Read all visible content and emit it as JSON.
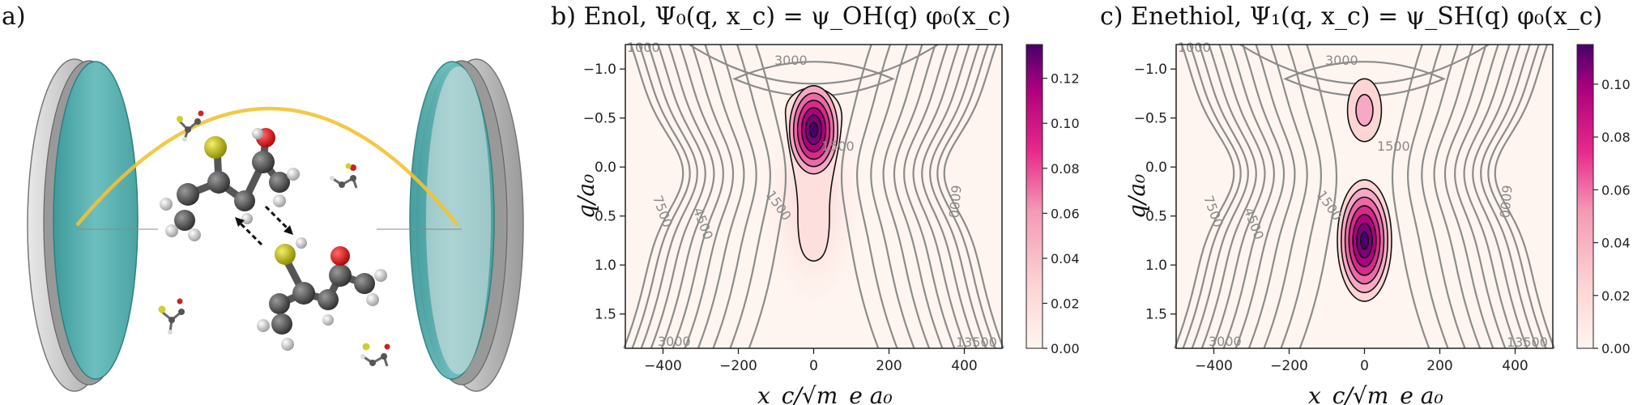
{
  "figure": {
    "panel_a_label": "a)",
    "panel_b_title": "b) Enol, Ψ₀(q, x_c) = ψ_OH(q) φ₀(x_c)",
    "panel_c_title": "c) Enethiol, Ψ₁(q, x_c) = ψ_SH(q) φ₀(x_c)"
  },
  "colors": {
    "mirror_teal": "#5fb3b3",
    "mirror_gray": "#c8c8c8",
    "photon_arc": "#f2c232",
    "contour_gray": "#8c8c8c",
    "cmap_low": "#fff5f0",
    "cmap_mid": "#e7298a",
    "cmap_high": "#49006a"
  },
  "chart_data": [
    {
      "type": "heatmap",
      "title": "Enol, Ψ₀(q, x_c) = ψ_OH(q) φ₀(x_c)",
      "xlabel": "x_c/√m_e a₀",
      "ylabel": "q/a₀",
      "xlim": [
        -500,
        500
      ],
      "ylim": [
        1.85,
        -1.25
      ],
      "xticks": [
        -400,
        -200,
        0,
        200,
        400
      ],
      "xtick_labels": [
        "−400",
        "−200",
        "0",
        "200",
        "400"
      ],
      "yticks": [
        -1.0,
        -0.5,
        0.0,
        0.5,
        1.0,
        1.5
      ],
      "ytick_labels": [
        "−1.0",
        "−0.5",
        "0.0",
        "0.5",
        "1.0",
        "1.5"
      ],
      "colorbar_range": [
        0,
        0.135
      ],
      "colorbar_ticks": [
        0,
        0.02,
        0.04,
        0.06,
        0.08,
        0.1,
        0.12
      ],
      "colorbar_labels": [
        "0.00",
        "0.02",
        "0.04",
        "0.06",
        "0.08",
        "0.10",
        "0.12"
      ],
      "peak": {
        "x": 0,
        "q": -0.38,
        "value": 0.135
      },
      "pes_contour_labels": [
        "1000",
        "3000",
        "1500",
        "1500",
        "7500",
        "4500",
        "6000",
        "3000",
        "13500"
      ]
    },
    {
      "type": "heatmap",
      "title": "Enethiol, Ψ₁(q, x_c) = ψ_SH(q) φ₀(x_c)",
      "xlabel": "x_c/√m_e a₀",
      "ylabel": "q/a₀",
      "xlim": [
        -500,
        500
      ],
      "ylim": [
        1.85,
        -1.25
      ],
      "xticks": [
        -400,
        -200,
        0,
        200,
        400
      ],
      "xtick_labels": [
        "−400",
        "−200",
        "0",
        "200",
        "400"
      ],
      "yticks": [
        -1.0,
        -0.5,
        0.0,
        0.5,
        1.0,
        1.5
      ],
      "ytick_labels": [
        "−1.0",
        "−0.5",
        "0.0",
        "0.5",
        "1.0",
        "1.5"
      ],
      "colorbar_range": [
        0,
        0.115
      ],
      "colorbar_ticks": [
        0,
        0.02,
        0.04,
        0.06,
        0.08,
        0.1
      ],
      "colorbar_labels": [
        "0.00",
        "0.02",
        "0.04",
        "0.06",
        "0.08",
        "0.10"
      ],
      "peaks": [
        {
          "x": 0,
          "q": -0.58,
          "value": 0.03
        },
        {
          "x": 0,
          "q": 0.75,
          "value": 0.115
        }
      ],
      "pes_contour_labels": [
        "1000",
        "3000",
        "1500",
        "1500",
        "7500",
        "4500",
        "6000",
        "3000",
        "13500"
      ]
    }
  ]
}
